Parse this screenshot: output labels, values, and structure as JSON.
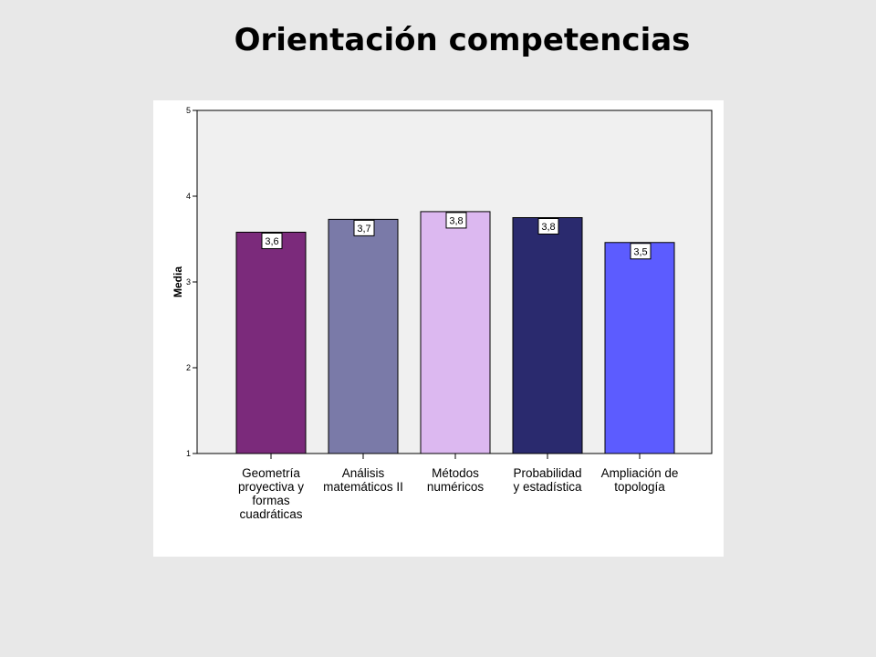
{
  "title": "Orientación competencias",
  "chart_data": {
    "type": "bar",
    "title": "",
    "xlabel": "",
    "ylabel": "Media",
    "ylim": [
      1,
      5
    ],
    "yticks": [
      1,
      2,
      3,
      4,
      5
    ],
    "grid": false,
    "categories": [
      [
        "Geometría",
        "proyectiva y",
        "formas",
        "cuadráticas"
      ],
      [
        "Análisis",
        "matemáticos II"
      ],
      [
        "Métodos",
        "numéricos"
      ],
      [
        "Probabilidad",
        "y estadística"
      ],
      [
        "Ampliación de",
        "topología"
      ]
    ],
    "values": [
      3.58,
      3.73,
      3.82,
      3.75,
      3.46
    ],
    "value_labels": [
      "3,6",
      "3,7",
      "3,8",
      "3,8",
      "3,5"
    ],
    "colors": [
      "#7b2a7b",
      "#7a7aa8",
      "#dcb8f0",
      "#2a2a6e",
      "#5c5cff"
    ],
    "plot_background": "#f0f0f0"
  }
}
